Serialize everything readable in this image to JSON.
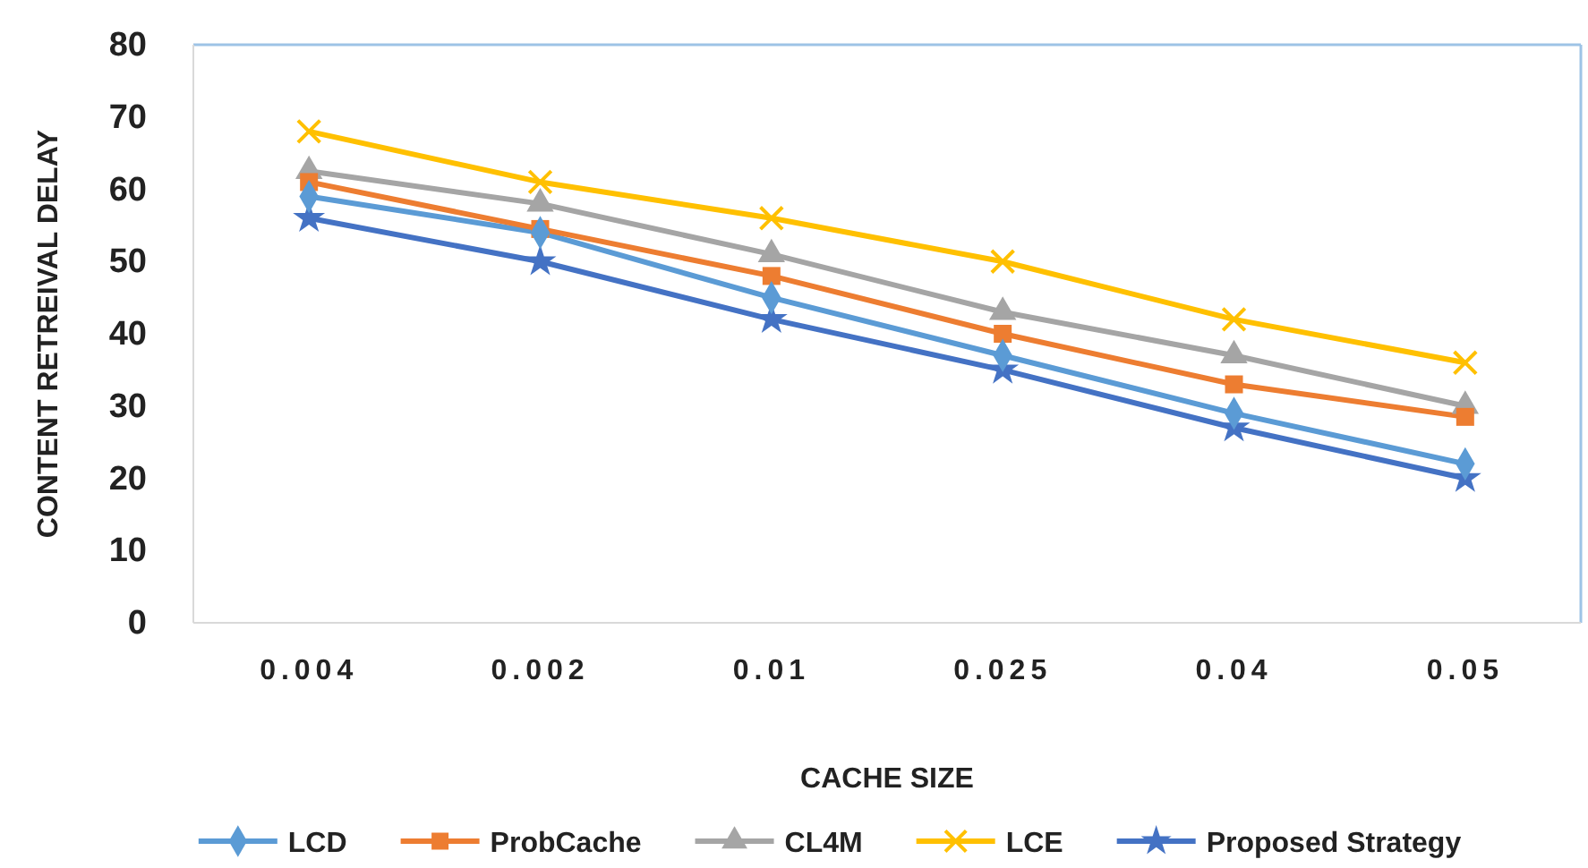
{
  "chart_data": {
    "type": "line",
    "xlabel": "CACHE SIZE",
    "ylabel": "CONTENT RETREIVAL DELAY",
    "categories": [
      "0.004",
      "0.002",
      "0.01",
      "0.025",
      "0.04",
      "0.05"
    ],
    "ylim": [
      0,
      80
    ],
    "yticks": [
      0,
      10,
      20,
      30,
      40,
      50,
      60,
      70,
      80
    ],
    "grid": false,
    "legend": "bottom",
    "series": [
      {
        "name": "LCD",
        "color": "#5b9bd5",
        "marker": "diamond",
        "values": [
          59,
          54,
          45,
          37,
          29,
          22
        ]
      },
      {
        "name": "ProbCache",
        "color": "#ed7d31",
        "marker": "square",
        "values": [
          61,
          54.5,
          48,
          40,
          33,
          28.5
        ]
      },
      {
        "name": "CL4M",
        "color": "#a5a5a5",
        "marker": "triangle",
        "values": [
          62.5,
          58,
          51,
          43,
          37,
          30
        ]
      },
      {
        "name": "LCE",
        "color": "#ffc000",
        "marker": "cross",
        "values": [
          68,
          61,
          56,
          50,
          42,
          36
        ]
      },
      {
        "name": "Proposed Strategy",
        "color": "#4472c4",
        "marker": "star",
        "values": [
          56,
          50,
          42,
          35,
          27,
          20
        ]
      }
    ]
  }
}
